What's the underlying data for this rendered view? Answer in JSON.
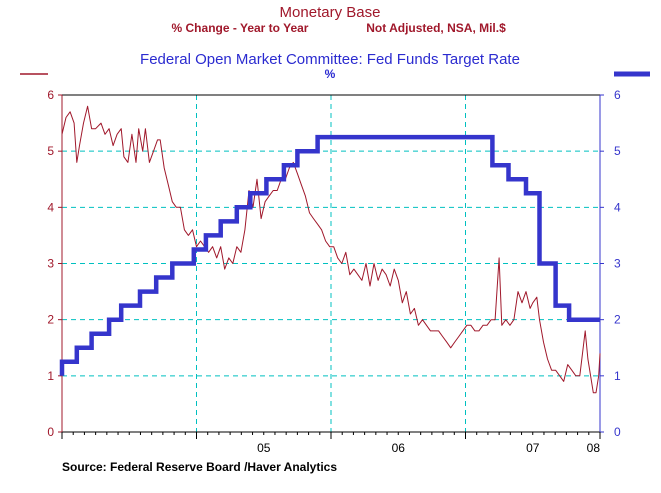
{
  "chart_data": {
    "type": "line",
    "title": "Monetary Base",
    "subtitle_left": "% Change - Year to Year",
    "subtitle_right": "Not Adjusted, NSA, Mil.$",
    "title2": "Federal Open Market Committee: Fed Funds Target Rate",
    "subtitle2": "%",
    "source": "Source:  Federal Reserve Board /Haver Analytics",
    "xlim": [
      2004.0,
      2008.0
    ],
    "ylim": [
      0,
      6
    ],
    "y_ticks": [
      "0",
      "1",
      "2",
      "3",
      "4",
      "5",
      "6"
    ],
    "x_tick_labels": [
      {
        "x": 2005.5,
        "label": "05"
      },
      {
        "x": 2006.5,
        "label": "06"
      },
      {
        "x": 2007.5,
        "label": "07"
      },
      {
        "x": 2008.0,
        "label": "08"
      }
    ],
    "vertical_gridlines": [
      2005.0,
      2006.0,
      2007.0,
      2008.0
    ],
    "grid": true,
    "colors": {
      "monetary_base": "#a0182b",
      "fed_funds": "#3535cc",
      "grid": "#00c0c0"
    },
    "series": [
      {
        "name": "Monetary Base",
        "axis": "left",
        "color": "#a0182b",
        "points": [
          [
            2004.0,
            5.3
          ],
          [
            2004.03,
            5.6
          ],
          [
            2004.06,
            5.7
          ],
          [
            2004.09,
            5.5
          ],
          [
            2004.11,
            4.8
          ],
          [
            2004.13,
            5.1
          ],
          [
            2004.16,
            5.5
          ],
          [
            2004.19,
            5.8
          ],
          [
            2004.22,
            5.4
          ],
          [
            2004.25,
            5.4
          ],
          [
            2004.29,
            5.5
          ],
          [
            2004.32,
            5.3
          ],
          [
            2004.35,
            5.4
          ],
          [
            2004.38,
            5.1
          ],
          [
            2004.41,
            5.3
          ],
          [
            2004.44,
            5.4
          ],
          [
            2004.46,
            4.9
          ],
          [
            2004.49,
            4.8
          ],
          [
            2004.52,
            5.3
          ],
          [
            2004.55,
            4.8
          ],
          [
            2004.57,
            5.4
          ],
          [
            2004.6,
            5.0
          ],
          [
            2004.62,
            5.4
          ],
          [
            2004.65,
            4.8
          ],
          [
            2004.68,
            5.0
          ],
          [
            2004.71,
            5.2
          ],
          [
            2004.73,
            5.2
          ],
          [
            2004.76,
            4.7
          ],
          [
            2004.79,
            4.4
          ],
          [
            2004.82,
            4.1
          ],
          [
            2004.85,
            4.0
          ],
          [
            2004.88,
            4.0
          ],
          [
            2004.91,
            3.6
          ],
          [
            2004.94,
            3.5
          ],
          [
            2004.97,
            3.6
          ],
          [
            2005.0,
            3.3
          ],
          [
            2005.03,
            3.4
          ],
          [
            2005.06,
            3.3
          ],
          [
            2005.09,
            3.2
          ],
          [
            2005.12,
            3.3
          ],
          [
            2005.15,
            3.1
          ],
          [
            2005.18,
            3.3
          ],
          [
            2005.21,
            2.9
          ],
          [
            2005.24,
            3.1
          ],
          [
            2005.27,
            3.0
          ],
          [
            2005.3,
            3.3
          ],
          [
            2005.33,
            3.2
          ],
          [
            2005.36,
            3.6
          ],
          [
            2005.39,
            4.3
          ],
          [
            2005.42,
            4.0
          ],
          [
            2005.45,
            4.5
          ],
          [
            2005.48,
            3.8
          ],
          [
            2005.51,
            4.1
          ],
          [
            2005.54,
            4.2
          ],
          [
            2005.57,
            4.3
          ],
          [
            2005.6,
            4.3
          ],
          [
            2005.63,
            4.5
          ],
          [
            2005.66,
            4.5
          ],
          [
            2005.69,
            4.7
          ],
          [
            2005.72,
            4.8
          ],
          [
            2005.75,
            4.6
          ],
          [
            2005.78,
            4.4
          ],
          [
            2005.81,
            4.2
          ],
          [
            2005.84,
            3.9
          ],
          [
            2005.87,
            3.8
          ],
          [
            2005.9,
            3.7
          ],
          [
            2005.93,
            3.6
          ],
          [
            2005.96,
            3.4
          ],
          [
            2005.99,
            3.3
          ],
          [
            2006.02,
            3.3
          ],
          [
            2006.05,
            3.1
          ],
          [
            2006.08,
            3.0
          ],
          [
            2006.11,
            3.2
          ],
          [
            2006.14,
            2.8
          ],
          [
            2006.17,
            2.9
          ],
          [
            2006.2,
            2.8
          ],
          [
            2006.23,
            2.7
          ],
          [
            2006.26,
            3.0
          ],
          [
            2006.29,
            2.6
          ],
          [
            2006.32,
            3.0
          ],
          [
            2006.35,
            2.7
          ],
          [
            2006.38,
            2.9
          ],
          [
            2006.41,
            2.8
          ],
          [
            2006.44,
            2.6
          ],
          [
            2006.47,
            2.9
          ],
          [
            2006.5,
            2.7
          ],
          [
            2006.53,
            2.3
          ],
          [
            2006.56,
            2.5
          ],
          [
            2006.59,
            2.1
          ],
          [
            2006.62,
            2.2
          ],
          [
            2006.65,
            1.9
          ],
          [
            2006.68,
            2.0
          ],
          [
            2006.71,
            1.9
          ],
          [
            2006.74,
            1.8
          ],
          [
            2006.77,
            1.8
          ],
          [
            2006.8,
            1.8
          ],
          [
            2006.83,
            1.7
          ],
          [
            2006.86,
            1.6
          ],
          [
            2006.89,
            1.5
          ],
          [
            2006.92,
            1.6
          ],
          [
            2006.95,
            1.7
          ],
          [
            2006.98,
            1.8
          ],
          [
            2007.01,
            1.9
          ],
          [
            2007.04,
            1.9
          ],
          [
            2007.07,
            1.8
          ],
          [
            2007.1,
            1.8
          ],
          [
            2007.13,
            1.9
          ],
          [
            2007.16,
            1.9
          ],
          [
            2007.19,
            2.0
          ],
          [
            2007.22,
            2.0
          ],
          [
            2007.25,
            3.1
          ],
          [
            2007.27,
            1.9
          ],
          [
            2007.3,
            2.0
          ],
          [
            2007.33,
            1.9
          ],
          [
            2007.36,
            2.0
          ],
          [
            2007.39,
            2.5
          ],
          [
            2007.42,
            2.3
          ],
          [
            2007.45,
            2.5
          ],
          [
            2007.48,
            2.2
          ],
          [
            2007.5,
            2.3
          ],
          [
            2007.53,
            2.4
          ],
          [
            2007.55,
            2.0
          ],
          [
            2007.58,
            1.6
          ],
          [
            2007.61,
            1.3
          ],
          [
            2007.64,
            1.1
          ],
          [
            2007.67,
            1.1
          ],
          [
            2007.7,
            1.0
          ],
          [
            2007.73,
            0.9
          ],
          [
            2007.76,
            1.2
          ],
          [
            2007.79,
            1.1
          ],
          [
            2007.82,
            1.0
          ],
          [
            2007.85,
            1.0
          ],
          [
            2007.87,
            1.4
          ],
          [
            2007.89,
            1.8
          ],
          [
            2007.91,
            1.3
          ],
          [
            2007.93,
            1.0
          ],
          [
            2007.95,
            0.7
          ],
          [
            2007.97,
            0.7
          ],
          [
            2007.99,
            1.0
          ],
          [
            2008.0,
            1.4
          ]
        ]
      },
      {
        "name": "Federal Open Market Committee: Fed Funds Target Rate",
        "axis": "right",
        "color": "#3535cc",
        "points": [
          [
            2004.0,
            1.0
          ],
          [
            2004.0,
            1.25
          ],
          [
            2004.11,
            1.25
          ],
          [
            2004.11,
            1.5
          ],
          [
            2004.22,
            1.5
          ],
          [
            2004.22,
            1.75
          ],
          [
            2004.35,
            1.75
          ],
          [
            2004.35,
            2.0
          ],
          [
            2004.44,
            2.0
          ],
          [
            2004.44,
            2.25
          ],
          [
            2004.58,
            2.25
          ],
          [
            2004.58,
            2.5
          ],
          [
            2004.7,
            2.5
          ],
          [
            2004.7,
            2.75
          ],
          [
            2004.82,
            2.75
          ],
          [
            2004.82,
            3.0
          ],
          [
            2004.98,
            3.0
          ],
          [
            2004.98,
            3.25
          ],
          [
            2005.07,
            3.25
          ],
          [
            2005.07,
            3.5
          ],
          [
            2005.18,
            3.5
          ],
          [
            2005.18,
            3.75
          ],
          [
            2005.3,
            3.75
          ],
          [
            2005.3,
            4.0
          ],
          [
            2005.4,
            4.0
          ],
          [
            2005.4,
            4.25
          ],
          [
            2005.52,
            4.25
          ],
          [
            2005.52,
            4.5
          ],
          [
            2005.65,
            4.5
          ],
          [
            2005.65,
            4.75
          ],
          [
            2005.75,
            4.75
          ],
          [
            2005.75,
            5.0
          ],
          [
            2005.9,
            5.0
          ],
          [
            2005.9,
            5.25
          ],
          [
            2007.2,
            5.25
          ],
          [
            2007.2,
            4.75
          ],
          [
            2007.32,
            4.75
          ],
          [
            2007.32,
            4.5
          ],
          [
            2007.45,
            4.5
          ],
          [
            2007.45,
            4.25
          ],
          [
            2007.55,
            4.25
          ],
          [
            2007.55,
            3.0
          ],
          [
            2007.67,
            3.0
          ],
          [
            2007.67,
            2.25
          ],
          [
            2007.77,
            2.25
          ],
          [
            2007.77,
            2.0
          ],
          [
            2008.0,
            2.0
          ]
        ]
      }
    ]
  }
}
